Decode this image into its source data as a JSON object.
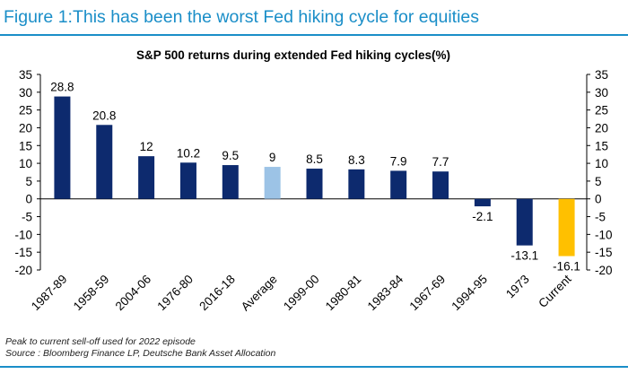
{
  "figure_title": "Figure 1:This has been the worst Fed hiking cycle for equities",
  "notes": {
    "line1": "Peak to current sell-off used for 2022 episode",
    "line2": "Source : Bloomberg Finance LP, Deutsche Bank Asset Allocation"
  },
  "colors": {
    "accent": "#1a8ec8",
    "bar_default": "#0d2a6e",
    "bar_average": "#9cc3e6",
    "bar_current": "#ffc000"
  },
  "chart_data": {
    "type": "bar",
    "title": "S&P 500 returns during extended Fed hiking cycles(%)",
    "xlabel": "",
    "ylabel": "",
    "ylim": [
      -20,
      35
    ],
    "yticks": [
      35,
      30,
      25,
      20,
      15,
      10,
      5,
      0,
      -5,
      -10,
      -15,
      -20
    ],
    "grid": false,
    "dual_y_axis": true,
    "categories": [
      "1987-89",
      "1958-59",
      "2004-06",
      "1976-80",
      "2016-18",
      "Average",
      "1999-00",
      "1980-81",
      "1983-84",
      "1967-69",
      "1994-95",
      "1973",
      "Current"
    ],
    "values": [
      28.8,
      20.8,
      12,
      10.2,
      9.5,
      9,
      8.5,
      8.3,
      7.9,
      7.7,
      -2.1,
      -13.1,
      -16.1
    ],
    "labels": [
      "28.8",
      "20.8",
      "12",
      "10.2",
      "9.5",
      "9",
      "8.5",
      "8.3",
      "7.9",
      "7.7",
      "-2.1",
      "-13.1",
      "-16.1"
    ],
    "highlight": {
      "Average": "bar_average",
      "Current": "bar_current"
    }
  }
}
